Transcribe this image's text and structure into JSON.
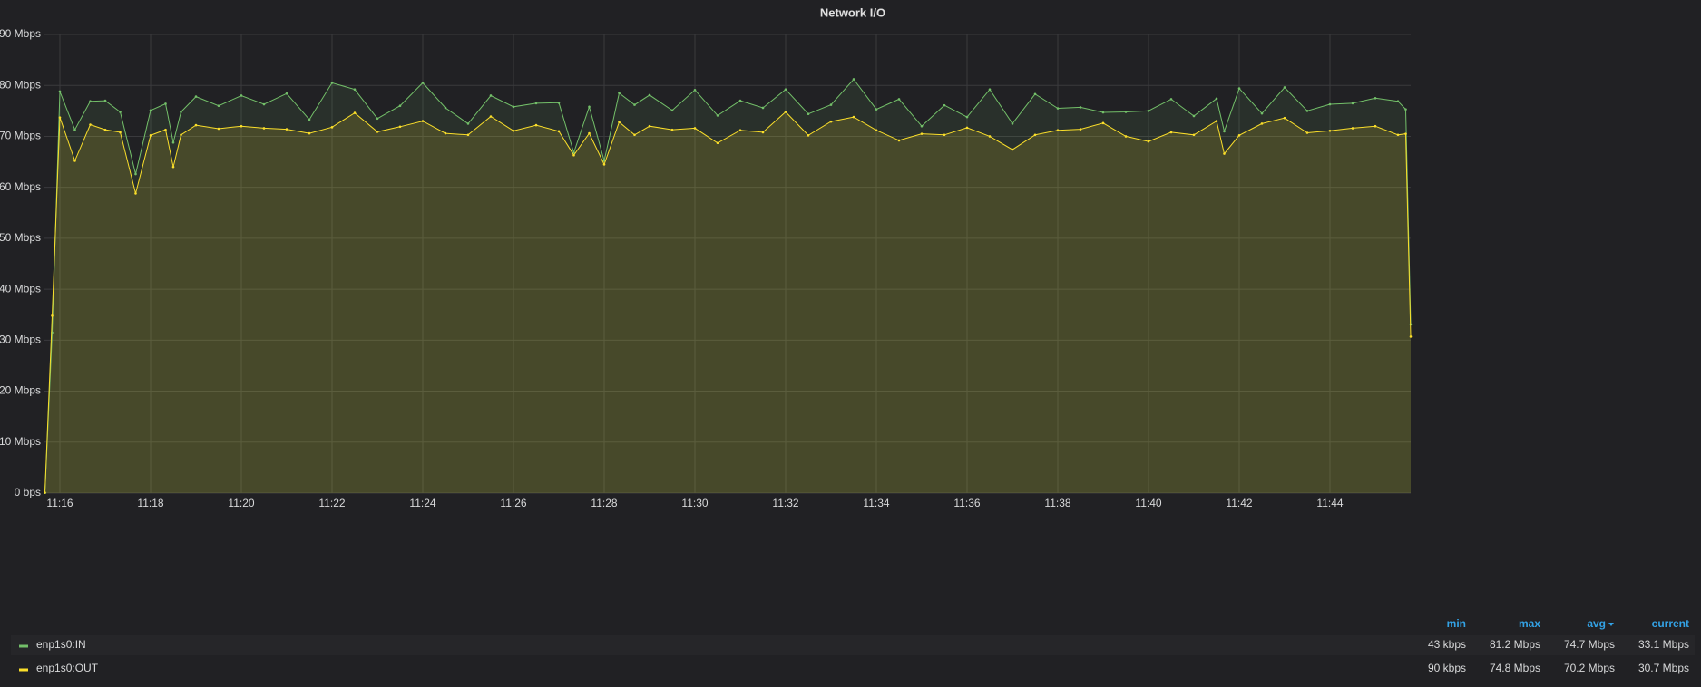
{
  "chart_data": {
    "type": "line",
    "title": "Network I/O",
    "x": [
      15.67,
      15.83,
      16.0,
      16.33,
      16.67,
      17.0,
      17.33,
      17.67,
      18.0,
      18.33,
      18.5,
      18.67,
      19.0,
      19.5,
      20.0,
      20.5,
      21.0,
      21.5,
      22.0,
      22.5,
      23.0,
      23.5,
      24.0,
      24.5,
      25.0,
      25.5,
      26.0,
      26.5,
      27.0,
      27.33,
      27.67,
      28.0,
      28.33,
      28.67,
      29.0,
      29.5,
      30.0,
      30.5,
      31.0,
      31.5,
      32.0,
      32.5,
      33.0,
      33.5,
      34.0,
      34.5,
      35.0,
      35.5,
      36.0,
      36.5,
      37.0,
      37.5,
      38.0,
      38.5,
      39.0,
      39.5,
      40.0,
      40.5,
      41.0,
      41.5,
      41.67,
      42.0,
      42.5,
      43.0,
      43.5,
      44.0,
      44.5,
      45.0,
      45.5,
      45.67,
      45.78
    ],
    "series": [
      {
        "name": "enp1s0:IN",
        "color": "#73bf69",
        "values": [
          0.043,
          31.5,
          78.8,
          71.3,
          76.9,
          77.0,
          74.8,
          62.6,
          75.1,
          76.4,
          68.8,
          74.8,
          77.8,
          76.0,
          78.0,
          76.3,
          78.4,
          73.3,
          80.5,
          79.2,
          73.5,
          76.0,
          80.5,
          75.6,
          72.5,
          78.0,
          75.8,
          76.5,
          76.6,
          66.8,
          75.8,
          65.2,
          78.5,
          76.2,
          78.1,
          75.1,
          79.1,
          74.1,
          77.0,
          75.6,
          79.2,
          74.4,
          76.2,
          81.2,
          75.3,
          77.3,
          72.0,
          76.1,
          73.8,
          79.2,
          72.5,
          78.3,
          75.5,
          75.7,
          74.7,
          74.8,
          75.0,
          77.3,
          74.0,
          77.4,
          71.0,
          79.4,
          74.5,
          79.6,
          75.0,
          76.3,
          76.5,
          77.5,
          76.9,
          75.3,
          33.1
        ],
        "stats": [
          "43 kbps",
          "81.2 Mbps",
          "74.7 Mbps",
          "33.1 Mbps"
        ]
      },
      {
        "name": "enp1s0:OUT",
        "color": "#fade2a",
        "values": [
          0.09,
          34.8,
          73.7,
          65.2,
          72.3,
          71.3,
          70.8,
          58.8,
          70.2,
          71.3,
          64.0,
          70.3,
          72.2,
          71.5,
          72.0,
          71.6,
          71.4,
          70.6,
          71.8,
          74.6,
          70.9,
          71.9,
          73.0,
          70.6,
          70.3,
          73.9,
          71.1,
          72.2,
          71.0,
          66.3,
          70.6,
          64.5,
          72.8,
          70.3,
          72.0,
          71.3,
          71.6,
          68.7,
          71.2,
          70.8,
          74.8,
          70.2,
          72.9,
          73.8,
          71.2,
          69.2,
          70.5,
          70.3,
          71.7,
          70.0,
          67.4,
          70.3,
          71.2,
          71.4,
          72.6,
          70.0,
          69.0,
          70.8,
          70.3,
          73.0,
          66.6,
          70.2,
          72.5,
          73.6,
          70.7,
          71.1,
          71.6,
          72.0,
          70.3,
          70.5,
          30.7
        ],
        "stats": [
          "90 kbps",
          "74.8 Mbps",
          "70.2 Mbps",
          "30.7 Mbps"
        ]
      }
    ],
    "legend": {
      "columns": [
        "min",
        "max",
        "avg",
        "current"
      ]
    },
    "xlim": [
      15.66,
      45.78
    ],
    "xticks": [
      {
        "value": 16,
        "label": "11:16"
      },
      {
        "value": 18,
        "label": "11:18"
      },
      {
        "value": 20,
        "label": "11:20"
      },
      {
        "value": 22,
        "label": "11:22"
      },
      {
        "value": 24,
        "label": "11:24"
      },
      {
        "value": 26,
        "label": "11:26"
      },
      {
        "value": 28,
        "label": "11:28"
      },
      {
        "value": 30,
        "label": "11:30"
      },
      {
        "value": 32,
        "label": "11:32"
      },
      {
        "value": 34,
        "label": "11:34"
      },
      {
        "value": 36,
        "label": "11:36"
      },
      {
        "value": 38,
        "label": "11:38"
      },
      {
        "value": 40,
        "label": "11:40"
      },
      {
        "value": 42,
        "label": "11:42"
      },
      {
        "value": 44,
        "label": "11:44"
      }
    ],
    "ylim": [
      0,
      90
    ],
    "yticks": [
      {
        "value": 0,
        "label": "0 bps"
      },
      {
        "value": 10,
        "label": "10 Mbps"
      },
      {
        "value": 20,
        "label": "20 Mbps"
      },
      {
        "value": 30,
        "label": "30 Mbps"
      },
      {
        "value": 40,
        "label": "40 Mbps"
      },
      {
        "value": 50,
        "label": "50 Mbps"
      },
      {
        "value": 60,
        "label": "60 Mbps"
      },
      {
        "value": 70,
        "label": "70 Mbps"
      },
      {
        "value": 80,
        "label": "80 Mbps"
      },
      {
        "value": 90,
        "label": "90 Mbps"
      }
    ],
    "grid": true
  }
}
